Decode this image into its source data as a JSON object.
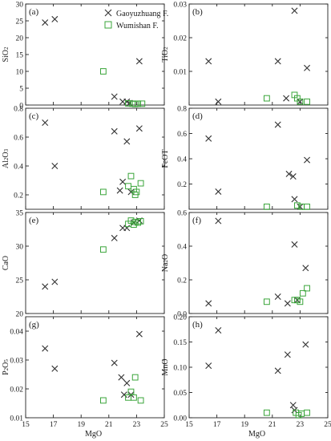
{
  "legend": {
    "series_a": "Gaoyuzhuang F.",
    "series_b": "Wumishan F.",
    "color_a": "#333333",
    "color_b": "#3aa53a"
  },
  "x_axis": {
    "label": "MgO",
    "range": [
      15,
      25
    ],
    "ticks": [
      "15",
      "17",
      "19",
      "21",
      "23",
      "25"
    ]
  },
  "chart_data": [
    {
      "type": "scatter",
      "tag": "(a)",
      "ylabel": "SiO2",
      "ylim": [
        0,
        30
      ],
      "yticks": [
        0,
        5,
        10,
        15,
        20,
        25,
        30
      ],
      "series": [
        {
          "name": "Gaoyuzhuang F.",
          "marker": "x",
          "points": [
            [
              16.4,
              24.5
            ],
            [
              17.1,
              25.5
            ],
            [
              21.4,
              2.5
            ],
            [
              22.0,
              1.0
            ],
            [
              22.3,
              1.0
            ],
            [
              22.5,
              0.6
            ],
            [
              23.2,
              13.0
            ]
          ]
        },
        {
          "name": "Wumishan F.",
          "marker": "square",
          "points": [
            [
              20.6,
              10.0
            ],
            [
              22.4,
              0.5
            ],
            [
              22.7,
              0.4
            ],
            [
              22.9,
              0.3
            ],
            [
              23.1,
              0.4
            ],
            [
              23.4,
              0.4
            ]
          ]
        }
      ]
    },
    {
      "type": "scatter",
      "tag": "(b)",
      "ylabel": "TiO2",
      "ylim": [
        0,
        0.03
      ],
      "yticks": [
        0.01,
        0.02,
        0.03
      ],
      "series": [
        {
          "name": "Gaoyuzhuang F.",
          "marker": "x",
          "points": [
            [
              16.4,
              0.013
            ],
            [
              17.1,
              0.001
            ],
            [
              21.4,
              0.013
            ],
            [
              22.0,
              0.002
            ],
            [
              22.6,
              0.028
            ],
            [
              23.0,
              0.001
            ],
            [
              23.5,
              0.011
            ]
          ]
        },
        {
          "name": "Wumishan F.",
          "marker": "square",
          "points": [
            [
              20.6,
              0.002
            ],
            [
              22.6,
              0.003
            ],
            [
              22.8,
              0.002
            ],
            [
              23.0,
              0.001
            ],
            [
              23.5,
              0.001
            ]
          ]
        }
      ]
    },
    {
      "type": "scatter",
      "tag": "(c)",
      "ylabel": "Al2O3",
      "ylim": [
        0.1,
        0.8
      ],
      "yticks": [
        0.2,
        0.4,
        0.6,
        0.8
      ],
      "series": [
        {
          "name": "Gaoyuzhuang F.",
          "marker": "x",
          "points": [
            [
              16.4,
              0.7
            ],
            [
              17.1,
              0.4
            ],
            [
              21.4,
              0.64
            ],
            [
              21.8,
              0.23
            ],
            [
              22.0,
              0.29
            ],
            [
              22.3,
              0.57
            ],
            [
              22.6,
              0.22
            ],
            [
              23.2,
              0.66
            ]
          ]
        },
        {
          "name": "Wumishan F.",
          "marker": "square",
          "points": [
            [
              20.6,
              0.22
            ],
            [
              22.4,
              0.26
            ],
            [
              22.6,
              0.33
            ],
            [
              22.8,
              0.24
            ],
            [
              22.9,
              0.2
            ],
            [
              23.0,
              0.22
            ],
            [
              23.3,
              0.28
            ]
          ]
        }
      ]
    },
    {
      "type": "scatter",
      "tag": "(d)",
      "ylabel": "FeOT",
      "ylim": [
        0,
        0.8
      ],
      "yticks": [
        0.2,
        0.4,
        0.6,
        0.8
      ],
      "series": [
        {
          "name": "Gaoyuzhuang F.",
          "marker": "x",
          "points": [
            [
              16.4,
              0.56
            ],
            [
              17.1,
              0.14
            ],
            [
              21.4,
              0.67
            ],
            [
              22.2,
              0.28
            ],
            [
              22.5,
              0.26
            ],
            [
              22.6,
              0.08
            ],
            [
              23.0,
              0.02
            ],
            [
              23.5,
              0.39
            ]
          ]
        },
        {
          "name": "Wumishan F.",
          "marker": "square",
          "points": [
            [
              20.6,
              0.02
            ],
            [
              22.8,
              0.03
            ],
            [
              23.1,
              0.02
            ],
            [
              23.5,
              0.02
            ]
          ]
        }
      ]
    },
    {
      "type": "scatter",
      "tag": "(e)",
      "ylabel": "CaO",
      "ylim": [
        20,
        35
      ],
      "yticks": [
        20,
        25,
        30,
        35
      ],
      "series": [
        {
          "name": "Gaoyuzhuang F.",
          "marker": "x",
          "points": [
            [
              16.4,
              24.0
            ],
            [
              17.1,
              24.7
            ],
            [
              21.4,
              31.2
            ],
            [
              22.0,
              32.7
            ],
            [
              22.3,
              32.7
            ],
            [
              22.8,
              33.5
            ],
            [
              23.2,
              33.8
            ]
          ]
        },
        {
          "name": "Wumishan F.",
          "marker": "square",
          "points": [
            [
              20.6,
              29.5
            ],
            [
              22.4,
              33.3
            ],
            [
              22.6,
              33.8
            ],
            [
              22.8,
              33.2
            ],
            [
              22.9,
              33.6
            ],
            [
              23.1,
              33.5
            ],
            [
              23.3,
              33.7
            ]
          ]
        }
      ]
    },
    {
      "type": "scatter",
      "tag": "(f)",
      "ylabel": "Na2O",
      "ylim": [
        0,
        0.6
      ],
      "yticks": [
        0.0,
        0.2,
        0.4,
        0.6
      ],
      "series": [
        {
          "name": "Gaoyuzhuang F.",
          "marker": "x",
          "points": [
            [
              16.4,
              0.06
            ],
            [
              17.1,
              0.55
            ],
            [
              21.4,
              0.1
            ],
            [
              22.1,
              0.06
            ],
            [
              22.6,
              0.41
            ],
            [
              22.8,
              0.08
            ],
            [
              23.4,
              0.27
            ]
          ]
        },
        {
          "name": "Wumishan F.",
          "marker": "square",
          "points": [
            [
              20.6,
              0.07
            ],
            [
              22.6,
              0.08
            ],
            [
              22.8,
              0.08
            ],
            [
              23.0,
              0.07
            ],
            [
              23.2,
              0.12
            ],
            [
              23.5,
              0.15
            ]
          ]
        }
      ]
    },
    {
      "type": "scatter",
      "tag": "(g)",
      "ylabel": "P2O5",
      "ylim": [
        0.01,
        0.045
      ],
      "yticks": [
        0.01,
        0.02,
        0.03,
        0.04
      ],
      "series": [
        {
          "name": "Gaoyuzhuang F.",
          "marker": "x",
          "points": [
            [
              16.4,
              0.034
            ],
            [
              17.1,
              0.027
            ],
            [
              21.4,
              0.029
            ],
            [
              21.9,
              0.024
            ],
            [
              22.1,
              0.018
            ],
            [
              22.3,
              0.022
            ],
            [
              22.6,
              0.018
            ],
            [
              23.2,
              0.039
            ]
          ]
        },
        {
          "name": "Wumishan F.",
          "marker": "square",
          "points": [
            [
              20.6,
              0.016
            ],
            [
              22.4,
              0.017
            ],
            [
              22.6,
              0.019
            ],
            [
              22.8,
              0.017
            ],
            [
              22.9,
              0.024
            ],
            [
              23.3,
              0.016
            ]
          ]
        }
      ]
    },
    {
      "type": "scatter",
      "tag": "(h)",
      "ylabel": "MnO",
      "ylim": [
        0,
        0.2
      ],
      "yticks": [
        0.0,
        0.05,
        0.1,
        0.15,
        0.2
      ],
      "series": [
        {
          "name": "Gaoyuzhuang F.",
          "marker": "x",
          "points": [
            [
              16.4,
              0.103
            ],
            [
              17.1,
              0.173
            ],
            [
              21.4,
              0.093
            ],
            [
              22.1,
              0.125
            ],
            [
              22.5,
              0.025
            ],
            [
              22.6,
              0.015
            ],
            [
              23.4,
              0.145
            ]
          ]
        },
        {
          "name": "Wumishan F.",
          "marker": "square",
          "points": [
            [
              20.6,
              0.01
            ],
            [
              22.7,
              0.01
            ],
            [
              22.9,
              0.005
            ],
            [
              23.1,
              0.008
            ],
            [
              23.5,
              0.01
            ]
          ]
        }
      ]
    }
  ]
}
